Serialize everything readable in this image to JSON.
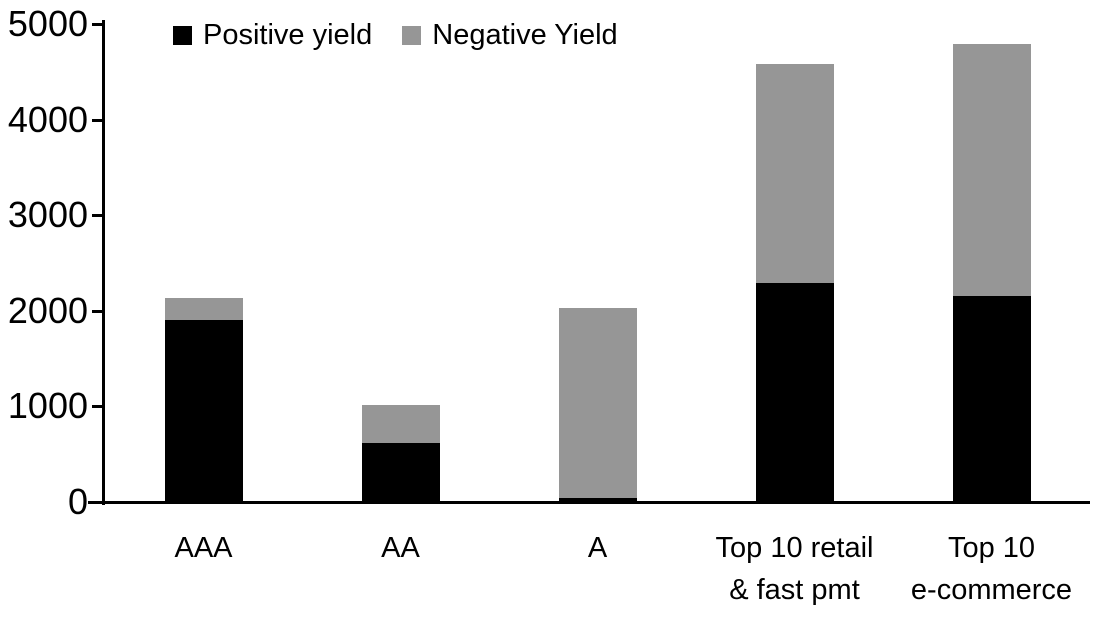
{
  "chart_data": {
    "type": "bar",
    "stacked": true,
    "title": "",
    "xlabel": "",
    "ylabel": "",
    "categories": [
      "AAA",
      "AA",
      "A",
      "Top 10 retail\n& fast pmt",
      "Top 10\ne-commerce"
    ],
    "series": [
      {
        "name": "Positive yield",
        "color": "#000000",
        "values": [
          1900,
          620,
          40,
          2290,
          2150
        ]
      },
      {
        "name": "Negative Yield",
        "color": "#969696",
        "values": [
          230,
          390,
          1990,
          2290,
          2640
        ]
      }
    ],
    "totals": [
      2130,
      1010,
      2030,
      4580,
      4790
    ],
    "ylim": [
      0,
      5000
    ],
    "yticks": [
      0,
      1000,
      2000,
      3000,
      4000,
      5000
    ],
    "grid": false,
    "legend_position": "top-left-inside"
  },
  "colors": {
    "axis": "#000000",
    "background": "#ffffff",
    "text": "#000000",
    "positive": "#000000",
    "negative": "#969696"
  }
}
